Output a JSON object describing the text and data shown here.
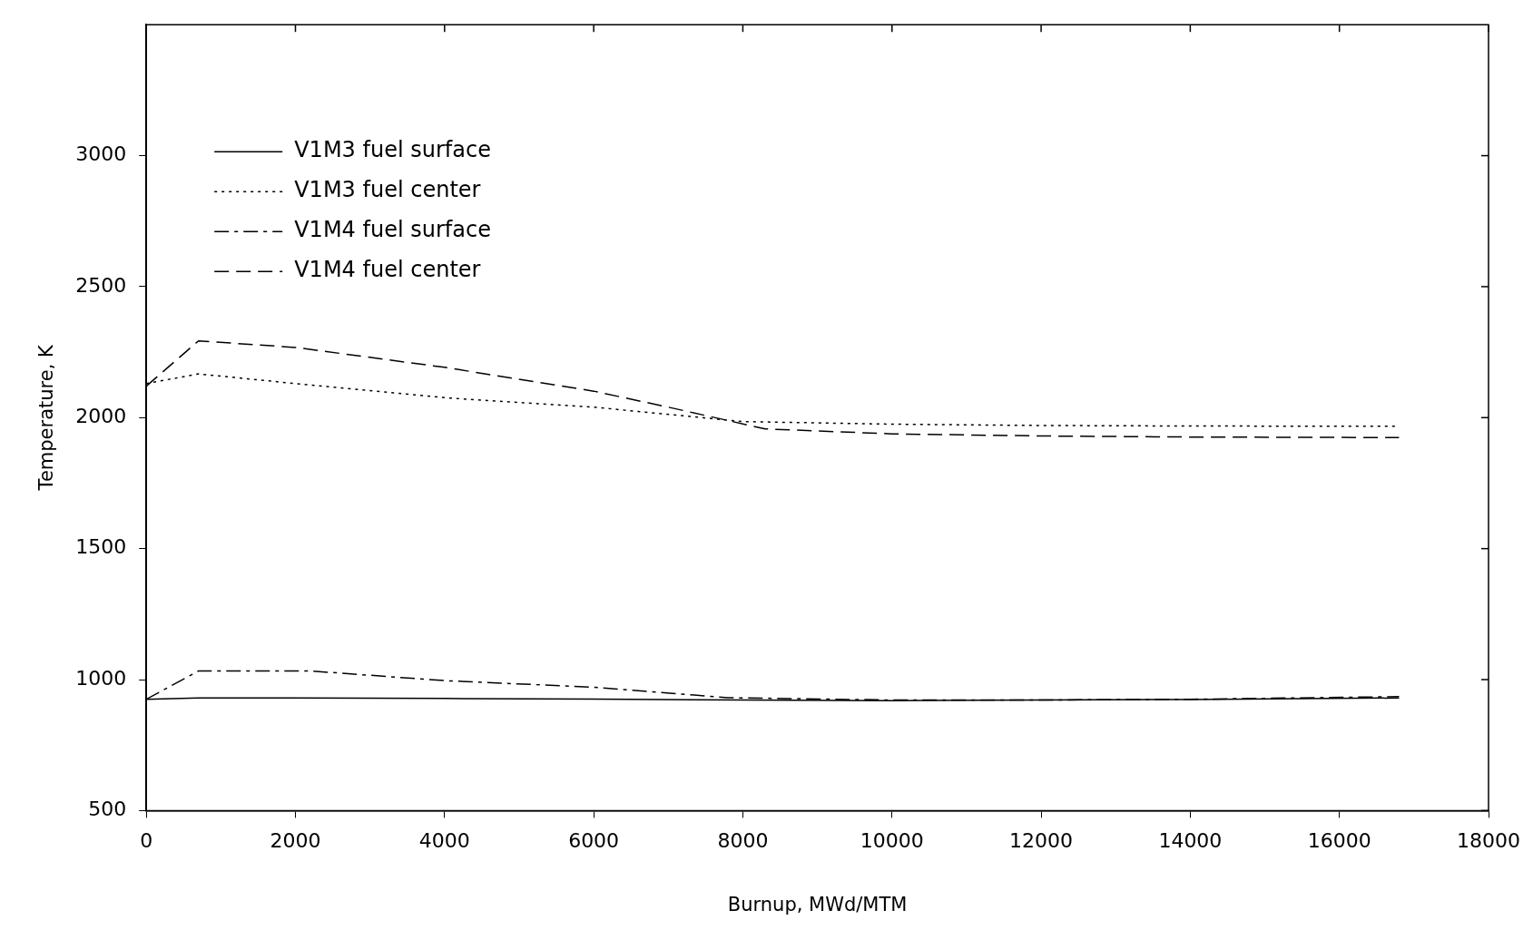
{
  "chart_data": {
    "type": "line",
    "xlabel": "Burnup, MWd/MTM",
    "ylabel": "Temperature, K",
    "xlim": [
      0,
      18000
    ],
    "xticks": [
      0,
      2000,
      4000,
      6000,
      8000,
      10000,
      12000,
      14000,
      16000,
      18000
    ],
    "ylim": [
      500,
      3500
    ],
    "yticks": [
      500,
      1000,
      1500,
      2000,
      2500,
      3000
    ],
    "grid": false,
    "legend": "top left",
    "marker": "none",
    "series": [
      {
        "name": "V1M3 fuel surface",
        "color": "#000000",
        "line_style": "solid",
        "x": [
          0,
          700,
          2000,
          4000,
          6000,
          8000,
          10000,
          12000,
          14000,
          16800
        ],
        "values": [
          925,
          930,
          930,
          928,
          926,
          922,
          920,
          922,
          924,
          930
        ]
      },
      {
        "name": "V1M3 fuel center",
        "color": "#000000",
        "line_style": "dotted",
        "x": [
          0,
          700,
          2000,
          4000,
          6000,
          8000,
          10000,
          12000,
          14000,
          16800
        ],
        "values": [
          2130,
          2167,
          2130,
          2076,
          2040,
          1985,
          1975,
          1970,
          1968,
          1967
        ]
      },
      {
        "name": "V1M4 fuel surface",
        "color": "#000000",
        "line_style": "dashdot",
        "x": [
          0,
          700,
          2200,
          4000,
          6000,
          7800,
          10000,
          12000,
          14000,
          16800
        ],
        "values": [
          925,
          1033,
          1033,
          996,
          971,
          931,
          922,
          922,
          925,
          935
        ]
      },
      {
        "name": "V1M4 fuel center",
        "color": "#000000",
        "line_style": "dashed",
        "x": [
          0,
          700,
          2000,
          4000,
          6000,
          7000,
          8300,
          10000,
          12000,
          14000,
          16800
        ],
        "values": [
          2120,
          2293,
          2268,
          2192,
          2101,
          2040,
          1957,
          1938,
          1930,
          1926,
          1924
        ]
      }
    ]
  }
}
